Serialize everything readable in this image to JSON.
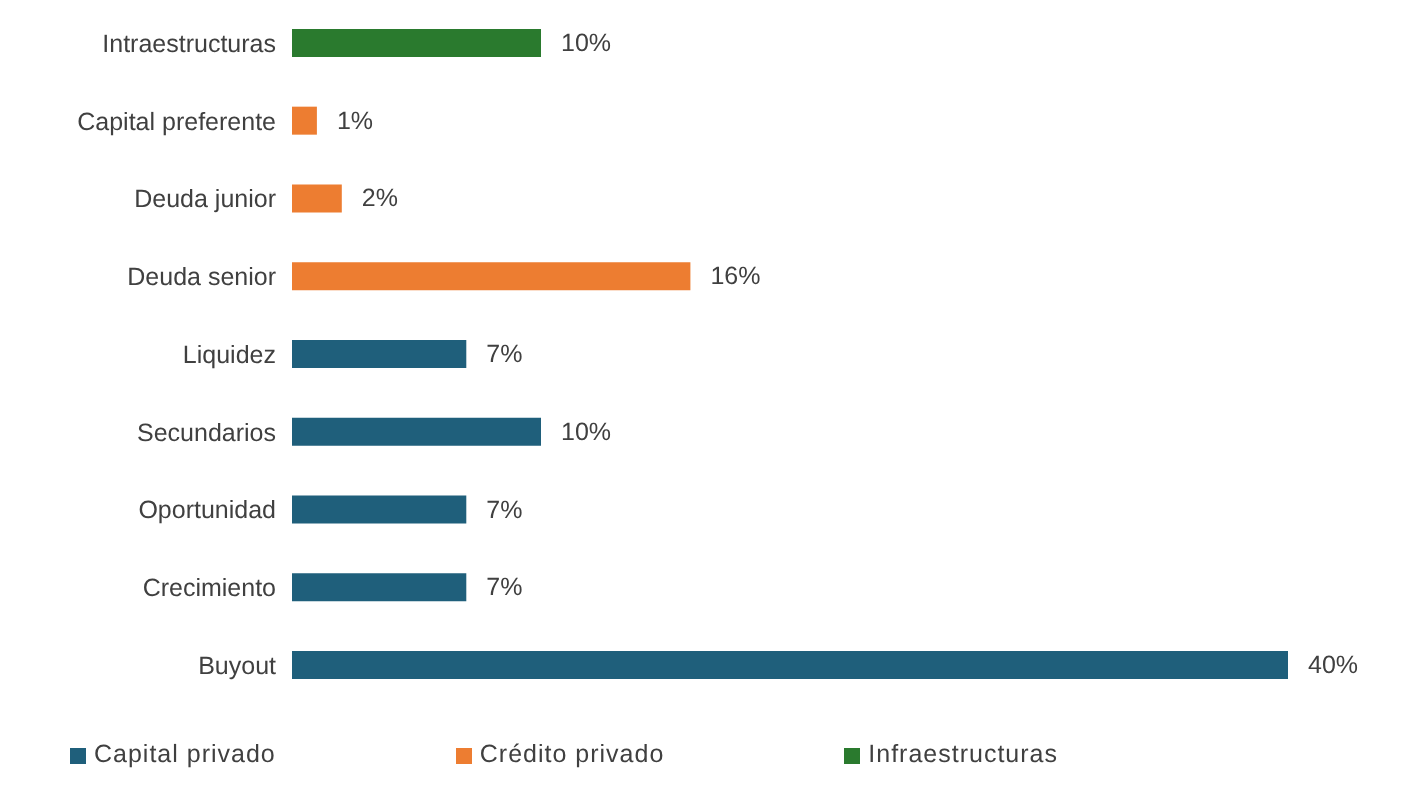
{
  "chart_data": {
    "type": "bar",
    "orientation": "horizontal",
    "stacked": true,
    "legend": "bottom",
    "categories": [
      "Intraestructuras",
      "Capital preferente",
      "Deuda junior",
      "Deuda senior",
      "Liquidez",
      "Secundarios",
      "Oportunidad",
      "Crecimiento",
      "Buyout"
    ],
    "series": [
      {
        "name": "Capital privado",
        "color": "#1f5f7b",
        "values": [
          null,
          null,
          null,
          null,
          7,
          10,
          7,
          7,
          40
        ],
        "value_labels": [
          null,
          null,
          null,
          null,
          "7%",
          "10%",
          "7%",
          "7%",
          "40%"
        ]
      },
      {
        "name": "Crédito privado",
        "color": "#ed7d31",
        "values": [
          null,
          1,
          2,
          16,
          null,
          null,
          null,
          null,
          null
        ],
        "value_labels": [
          null,
          "1%",
          "2%",
          "16%",
          null,
          null,
          null,
          null,
          null
        ]
      },
      {
        "name": "Infraestructuras",
        "color": "#2a7a2e",
        "values": [
          10,
          null,
          null,
          null,
          null,
          null,
          null,
          null,
          null
        ],
        "value_labels": [
          "10%",
          null,
          null,
          null,
          null,
          null,
          null,
          null,
          null
        ]
      }
    ]
  }
}
